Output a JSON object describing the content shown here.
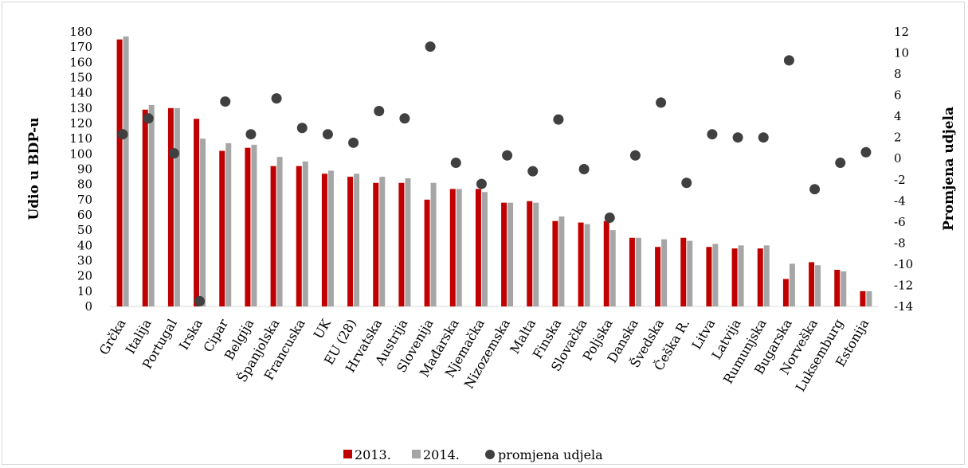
{
  "chart_data": {
    "type": "bar",
    "categories": [
      "Grčka",
      "Italija",
      "Portugal",
      "Irska",
      "Cipar",
      "Belgija",
      "Španjolska",
      "Francuska",
      "UK",
      "EU (28)",
      "Hrvatska",
      "Austrija",
      "Slovenija",
      "Mađarska",
      "Njemačka",
      "Nizozemska",
      "Malta",
      "Finska",
      "Slovačka",
      "Poljska",
      "Danska",
      "Švedska",
      "Češka R.",
      "Litva",
      "Latvija",
      "Rumunjska",
      "Bugarska",
      "Norveška",
      "Luksemburg",
      "Estonija"
    ],
    "series": [
      {
        "name": "2013.",
        "axis": "left",
        "color": "#c00000",
        "values": [
          175,
          129,
          130,
          123,
          102,
          104,
          92,
          92,
          87,
          85,
          81,
          81,
          70,
          77,
          77,
          68,
          69,
          56,
          55,
          56,
          45,
          39,
          45,
          39,
          38,
          38,
          18,
          29,
          24,
          10
        ]
      },
      {
        "name": "2014.",
        "axis": "left",
        "color": "#a6a6a6",
        "values": [
          177,
          132,
          130,
          110,
          107,
          106,
          98,
          95,
          89,
          87,
          85,
          84,
          81,
          77,
          75,
          68,
          68,
          59,
          54,
          50,
          45,
          44,
          43,
          41,
          40,
          40,
          28,
          27,
          23,
          10
        ]
      },
      {
        "name": "promjena udjela",
        "axis": "right",
        "type": "scatter",
        "color": "#404040",
        "values": [
          2.3,
          3.8,
          0.5,
          -13.5,
          5.4,
          2.3,
          5.7,
          2.9,
          2.3,
          1.5,
          4.5,
          3.8,
          10.6,
          -0.4,
          -2.4,
          0.3,
          -1.2,
          3.7,
          -1.0,
          -5.6,
          0.3,
          5.3,
          -2.3,
          2.3,
          2.0,
          2.0,
          9.3,
          -2.9,
          -0.4,
          0.6
        ]
      }
    ],
    "ylabel": "Udio u BDP-u",
    "y2label": "Promjena udjela",
    "ylim": [
      0,
      180
    ],
    "yticks": [
      "0",
      "10",
      "20",
      "30",
      "40",
      "50",
      "60",
      "70",
      "80",
      "90",
      "100",
      "110",
      "120",
      "130",
      "140",
      "150",
      "160",
      "170",
      "180"
    ],
    "y2lim": [
      -14,
      12
    ],
    "y2ticks": [
      "-14",
      "-12",
      "-10",
      "-8",
      "-6",
      "-4",
      "-2",
      "0",
      "2",
      "4",
      "6",
      "8",
      "10",
      "12"
    ],
    "grid": false,
    "legend": "bottom",
    "legend_entries": [
      "2013.",
      "2014.",
      "promjena udjela"
    ]
  }
}
